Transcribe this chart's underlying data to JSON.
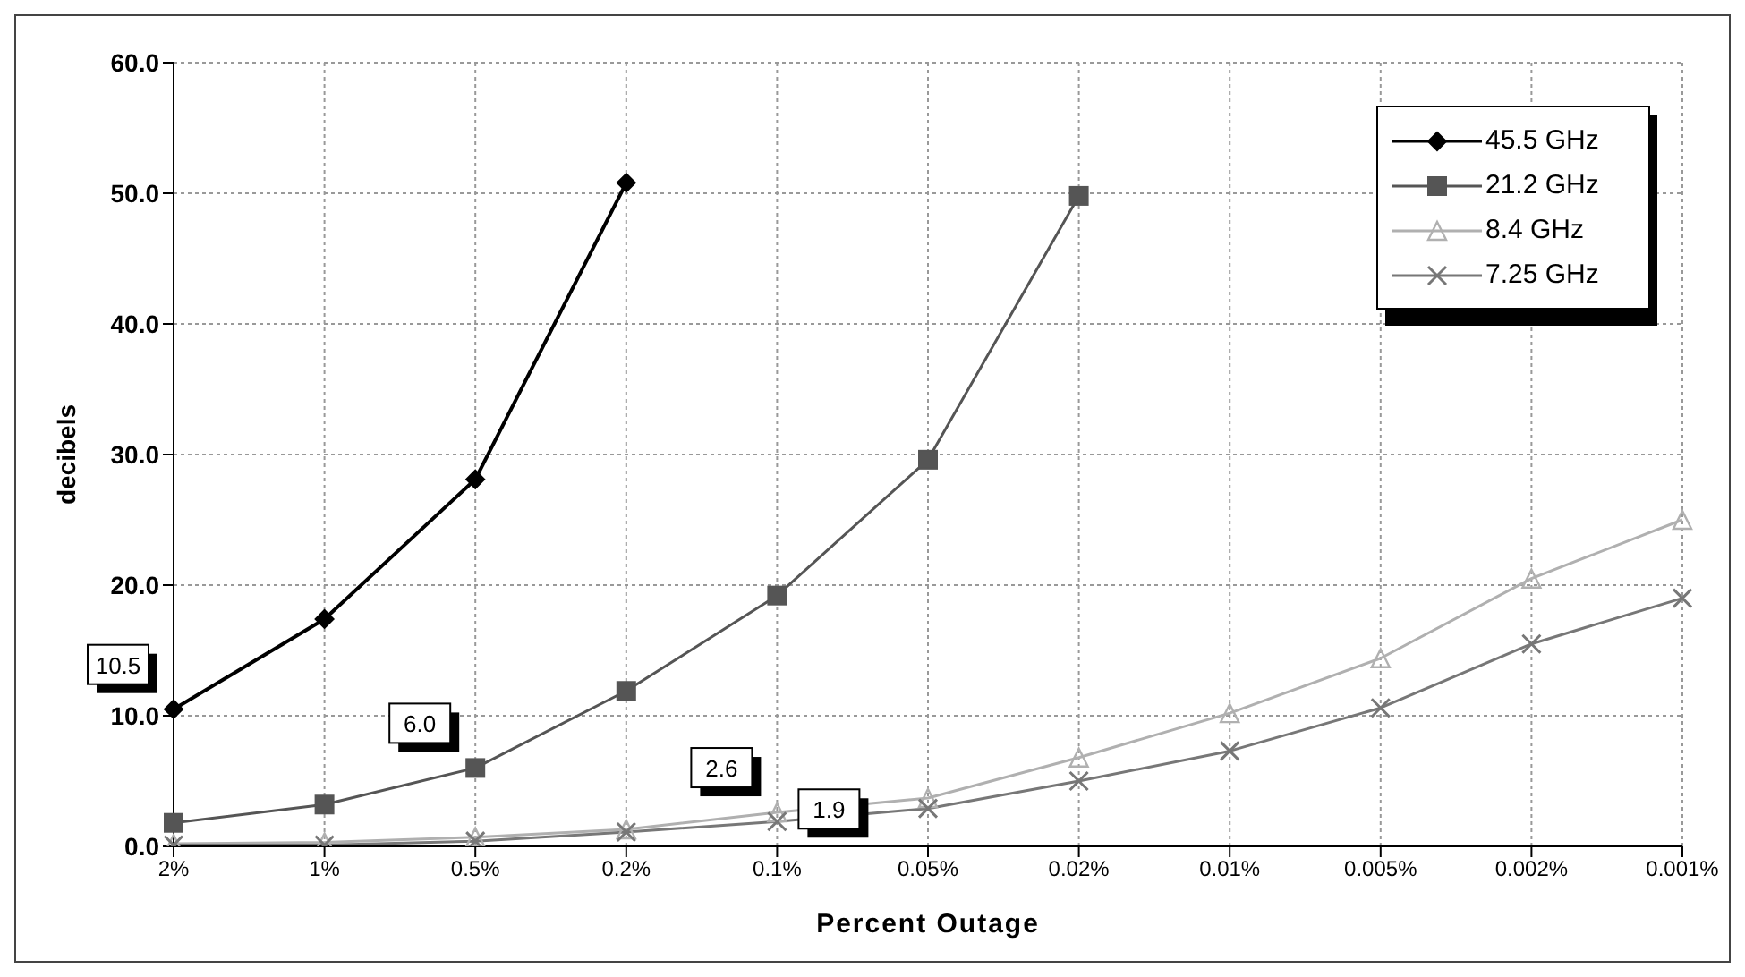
{
  "chart_data": {
    "type": "line",
    "xlabel": "Percent Outage",
    "ylabel": "decibels",
    "categories": [
      "2%",
      "1%",
      "0.5%",
      "0.2%",
      "0.1%",
      "0.05%",
      "0.02%",
      "0.01%",
      "0.005%",
      "0.002%",
      "0.001%"
    ],
    "series": [
      {
        "name": "45.5 GHz",
        "color": "#000000",
        "marker": "diamond",
        "values": [
          10.5,
          17.4,
          28.1,
          50.8,
          null,
          null,
          null,
          null,
          null,
          null,
          null
        ],
        "value_labels": [
          "10.5",
          null,
          null,
          null,
          null,
          null,
          null,
          null,
          null,
          null,
          null
        ]
      },
      {
        "name": "21.2 GHz",
        "color": "#555555",
        "marker": "square",
        "values": [
          1.8,
          3.2,
          6.0,
          11.9,
          19.2,
          29.6,
          49.8,
          null,
          null,
          null,
          null
        ],
        "value_labels": [
          null,
          null,
          "6.0",
          null,
          null,
          null,
          null,
          null,
          null,
          null,
          null
        ]
      },
      {
        "name": "8.4 GHz",
        "color": "#b0b0b0",
        "marker": "triangle",
        "values": [
          0.2,
          0.3,
          0.7,
          1.3,
          2.6,
          3.7,
          6.8,
          10.2,
          14.4,
          20.5,
          25.0
        ],
        "value_labels": [
          null,
          null,
          null,
          null,
          "2.6",
          null,
          null,
          null,
          null,
          null,
          null
        ]
      },
      {
        "name": "7.25 GHz",
        "color": "#777777",
        "marker": "cross",
        "values": [
          0.1,
          0.1,
          0.4,
          1.1,
          1.9,
          2.9,
          5.0,
          7.3,
          10.6,
          15.5,
          19.0
        ],
        "value_labels": [
          null,
          null,
          null,
          null,
          "1.9",
          null,
          null,
          null,
          null,
          null,
          null
        ]
      }
    ],
    "ylim": [
      0,
      60
    ],
    "yticks": [
      {
        "value": 0,
        "label": "0.0"
      },
      {
        "value": 10,
        "label": "10.0"
      },
      {
        "value": 20,
        "label": "20.0"
      },
      {
        "value": 30,
        "label": "30.0"
      },
      {
        "value": 40,
        "label": "40.0"
      },
      {
        "value": 50,
        "label": "50.0"
      },
      {
        "value": 60,
        "label": "60.0"
      }
    ],
    "grid": true,
    "legend": "top right",
    "line_style": "solid"
  }
}
